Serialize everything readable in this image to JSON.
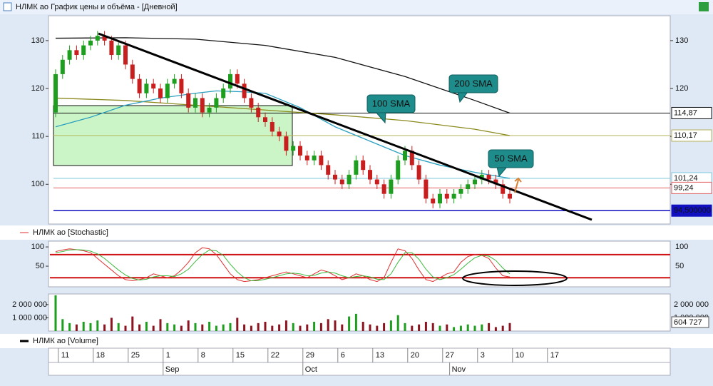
{
  "window": {
    "title": "НЛМК ао График цены и объёма - [Дневной]"
  },
  "chart_data": [
    {
      "type": "candlestick",
      "categories": [
        null,
        "11",
        null,
        null,
        null,
        null,
        "18",
        null,
        null,
        null,
        null,
        "25",
        null,
        null,
        null,
        null,
        "1",
        null,
        null,
        null,
        null,
        "8",
        null,
        null,
        null,
        null,
        "15",
        null,
        null,
        null,
        null,
        "22",
        null,
        null,
        null,
        null,
        "29",
        null,
        null,
        null,
        null,
        "6",
        null,
        null,
        null,
        null,
        "13",
        null,
        null,
        null,
        null,
        "20",
        null,
        null,
        null,
        null,
        "27",
        null,
        null,
        null,
        null,
        "3",
        null,
        null,
        null,
        null,
        "10",
        null,
        null,
        null,
        null,
        "17"
      ],
      "months": [
        null,
        null,
        null,
        null,
        null,
        null,
        null,
        null,
        null,
        null,
        null,
        null,
        null,
        null,
        null,
        null,
        "Sep",
        null,
        null,
        null,
        null,
        null,
        null,
        null,
        null,
        null,
        null,
        null,
        null,
        null,
        null,
        null,
        null,
        null,
        null,
        null,
        "Oct",
        null,
        null,
        null,
        null,
        null,
        null,
        null,
        null,
        null,
        null,
        null,
        null,
        null,
        null,
        null,
        null,
        null,
        null,
        null,
        null,
        "Nov",
        null,
        null,
        null,
        null,
        null,
        null,
        null,
        null
      ],
      "open": [
        115,
        123,
        126,
        128,
        127,
        129,
        130,
        131,
        130,
        127,
        129,
        125,
        122,
        119,
        121,
        120,
        118,
        121,
        122,
        119,
        116,
        118,
        115,
        116,
        118,
        120,
        123,
        121,
        118,
        116,
        114,
        113,
        111,
        110,
        107,
        108,
        106,
        105,
        106,
        104,
        102,
        101,
        100,
        102,
        105,
        103,
        101,
        100,
        98,
        101,
        105,
        107,
        104,
        101,
        97,
        96,
        98,
        97,
        98,
        99,
        100,
        101,
        102,
        101,
        100,
        98
      ],
      "high": [
        124,
        127,
        129,
        129,
        130,
        131,
        132,
        132,
        131,
        130,
        130,
        126,
        123,
        122,
        122,
        121,
        122,
        123,
        123,
        120,
        119,
        119,
        117,
        119,
        121,
        124,
        124,
        122,
        119,
        117,
        115,
        114,
        112,
        111,
        109,
        109,
        107,
        107,
        107,
        105,
        103,
        102,
        103,
        106,
        106,
        104,
        102,
        101,
        102,
        106,
        108,
        108,
        105,
        102,
        98,
        99,
        99,
        99,
        100,
        101,
        102,
        103,
        103,
        102,
        101,
        99
      ],
      "low": [
        114,
        122,
        125,
        126,
        126,
        128,
        129,
        129,
        126,
        126,
        124,
        121,
        118,
        118,
        119,
        117,
        117,
        120,
        118,
        115,
        115,
        114,
        114,
        115,
        117,
        119,
        120,
        117,
        115,
        113,
        112,
        110,
        109,
        106,
        106,
        105,
        104,
        104,
        103,
        101,
        100,
        99,
        99,
        101,
        102,
        100,
        99,
        97,
        97,
        100,
        104,
        103,
        100,
        96,
        95,
        95,
        96,
        96,
        97,
        98,
        99,
        100,
        100,
        99,
        97,
        96
      ],
      "close": [
        123,
        126,
        128,
        127,
        129,
        130,
        131,
        130,
        127,
        129,
        125,
        122,
        119,
        121,
        120,
        118,
        121,
        122,
        119,
        116,
        118,
        115,
        116,
        118,
        120,
        123,
        121,
        118,
        116,
        114,
        113,
        111,
        110,
        107,
        108,
        106,
        105,
        106,
        104,
        102,
        101,
        100,
        102,
        105,
        103,
        101,
        100,
        98,
        101,
        105,
        107,
        104,
        101,
        97,
        96,
        98,
        97,
        98,
        99,
        100,
        101,
        102,
        101,
        100,
        98,
        97
      ],
      "up_color": "#1e9e1e",
      "down_color": "#c81e1e",
      "ylim": [
        91.7,
        135.2
      ],
      "yticks": [
        100,
        110,
        120,
        130
      ],
      "series": [
        {
          "annotation": "200 SMA",
          "color": "#111111",
          "x": [
            0,
            10,
            20,
            30,
            40,
            50,
            60,
            65
          ],
          "values": [
            130.5,
            130.6,
            130.3,
            129,
            126.5,
            122.5,
            117.5,
            114.87
          ]
        },
        {
          "annotation": "100 SMA",
          "color": "#8c8a1e",
          "x": [
            0,
            10,
            20,
            30,
            40,
            50,
            60,
            65
          ],
          "values": [
            118,
            117.5,
            116.5,
            115.5,
            114.5,
            113.3,
            111.5,
            110.17
          ]
        },
        {
          "annotation": "50 SMA",
          "color": "#2a9fc0",
          "x": [
            0,
            5,
            10,
            15,
            20,
            23,
            27,
            30,
            35,
            40,
            45,
            50,
            55,
            60,
            65
          ],
          "values": [
            112,
            114,
            116.5,
            118,
            119,
            119.5,
            119.3,
            119,
            116,
            112,
            109,
            106,
            104,
            102.5,
            101.24
          ]
        }
      ],
      "levels": [
        {
          "value": 114.87,
          "label": "114,87",
          "color": "#111111"
        },
        {
          "value": 110.17,
          "label": "110,17",
          "color": "#b5b35a"
        },
        {
          "value": 101.24,
          "label": "101,24",
          "color": "#7fc9de"
        },
        {
          "value": 99.24,
          "label": "99,24",
          "color": "#e06060"
        },
        {
          "value": 94.5,
          "label": "94,500000",
          "color": "#1010c0"
        }
      ]
    },
    {
      "type": "line",
      "name": "НЛМК ао [Stochastic]",
      "ylim": [
        0,
        115
      ],
      "yticks": [
        50,
        100
      ],
      "levels": [
        20,
        80
      ],
      "level_color": "#d01010",
      "series": [
        {
          "color": "#e03030",
          "values": [
            88,
            92,
            95,
            93,
            90,
            85,
            70,
            55,
            40,
            25,
            15,
            12,
            15,
            20,
            30,
            25,
            20,
            25,
            40,
            60,
            85,
            98,
            95,
            80,
            55,
            30,
            15,
            10,
            12,
            15,
            20,
            25,
            30,
            35,
            30,
            25,
            20,
            30,
            40,
            35,
            25,
            15,
            20,
            30,
            25,
            15,
            10,
            20,
            60,
            95,
            90,
            70,
            40,
            15,
            10,
            20,
            30,
            35,
            60,
            75,
            80,
            78,
            70,
            45,
            25,
            22
          ]
        },
        {
          "color": "#3cb83c",
          "values": [
            85,
            88,
            92,
            93,
            92,
            89,
            82,
            70,
            55,
            40,
            27,
            18,
            14,
            16,
            22,
            25,
            25,
            23,
            30,
            42,
            62,
            80,
            92,
            90,
            78,
            55,
            35,
            20,
            12,
            12,
            16,
            20,
            25,
            30,
            32,
            30,
            25,
            26,
            32,
            35,
            32,
            25,
            20,
            23,
            25,
            22,
            16,
            15,
            30,
            60,
            85,
            85,
            68,
            42,
            22,
            15,
            20,
            28,
            42,
            58,
            72,
            78,
            76,
            65,
            45,
            30
          ]
        }
      ]
    },
    {
      "type": "bar",
      "name": "НЛМК ао [Volume]",
      "ylim": [
        0,
        2800000
      ],
      "yticks": [
        {
          "value": 2000000,
          "label": "2 000 000"
        },
        {
          "value": 1000000,
          "label": "1 000 000"
        }
      ],
      "values": [
        2700000,
        900000,
        600000,
        500000,
        700000,
        600000,
        800000,
        500000,
        1000000,
        600000,
        400000,
        1100000,
        500000,
        700000,
        400000,
        900000,
        600000,
        500000,
        400000,
        800000,
        600000,
        500000,
        700000,
        400000,
        500000,
        600000,
        1000000,
        500000,
        400000,
        600000,
        700000,
        400000,
        500000,
        800000,
        600000,
        400000,
        500000,
        700000,
        600000,
        900000,
        800000,
        500000,
        1100000,
        1300000,
        700000,
        500000,
        400000,
        600000,
        800000,
        1200000,
        600000,
        400000,
        500000,
        700000,
        600000,
        400000,
        500000,
        300000,
        400000,
        500000,
        400000,
        500000,
        600000,
        300000,
        400000,
        604727
      ],
      "last_value_label": "604 727"
    }
  ]
}
